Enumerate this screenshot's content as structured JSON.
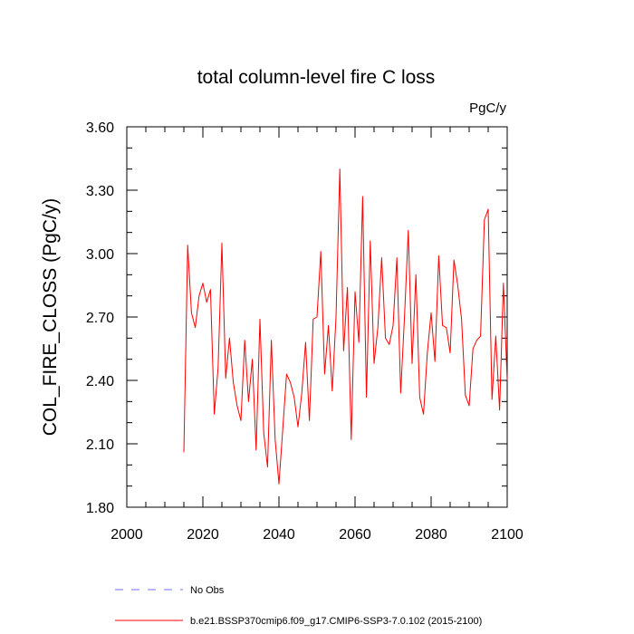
{
  "chart_data": {
    "type": "line",
    "title": "total column-level fire C loss",
    "units": "PgC/y",
    "ylabel": "COL_FIRE_CLOSS  (PgC/y)",
    "xlim": [
      2000,
      2100
    ],
    "ylim": [
      1.8,
      3.6
    ],
    "x_ticks": [
      "2000",
      "2020",
      "2040",
      "2060",
      "2080",
      "2100"
    ],
    "y_ticks": [
      "1.80",
      "2.10",
      "2.40",
      "2.70",
      "3.00",
      "3.30",
      "3.60"
    ],
    "grid": false,
    "legend": {
      "placement": "bottom",
      "entries": [
        {
          "label": "No Obs",
          "color": "#6f6fff",
          "style": "dashed"
        },
        {
          "label": "b.e21.BSSP370cmip6.f09_g17.CMIP6-SSP3-7.0.102 (2015-2100)",
          "color": "#ff0000",
          "style": "solid"
        }
      ]
    },
    "series": [
      {
        "name": "b.e21.BSSP370cmip6.f09_g17.CMIP6-SSP3-7.0.102 (2015-2100)",
        "color": "#ff0000",
        "x": [
          2015,
          2016,
          2017,
          2018,
          2019,
          2020,
          2021,
          2022,
          2023,
          2024,
          2025,
          2026,
          2027,
          2028,
          2029,
          2030,
          2031,
          2032,
          2033,
          2034,
          2035,
          2036,
          2037,
          2038,
          2039,
          2040,
          2041,
          2042,
          2043,
          2044,
          2045,
          2046,
          2047,
          2048,
          2049,
          2050,
          2051,
          2052,
          2053,
          2054,
          2055,
          2056,
          2057,
          2058,
          2059,
          2060,
          2061,
          2062,
          2063,
          2064,
          2065,
          2066,
          2067,
          2068,
          2069,
          2070,
          2071,
          2072,
          2073,
          2074,
          2075,
          2076,
          2077,
          2078,
          2079,
          2080,
          2081,
          2082,
          2083,
          2084,
          2085,
          2086,
          2087,
          2088,
          2089,
          2090,
          2091,
          2092,
          2093,
          2094,
          2095,
          2096,
          2097,
          2098,
          2099,
          2100
        ],
        "values": [
          2.06,
          3.04,
          2.72,
          2.65,
          2.8,
          2.86,
          2.77,
          2.83,
          2.24,
          2.46,
          3.05,
          2.41,
          2.6,
          2.39,
          2.28,
          2.21,
          2.59,
          2.3,
          2.5,
          2.07,
          2.69,
          2.15,
          1.99,
          2.59,
          2.12,
          1.91,
          2.17,
          2.43,
          2.39,
          2.32,
          2.18,
          2.34,
          2.58,
          2.21,
          2.69,
          2.7,
          3.01,
          2.43,
          2.66,
          2.35,
          2.7,
          3.4,
          2.54,
          2.84,
          2.12,
          2.82,
          2.58,
          3.27,
          2.32,
          3.06,
          2.48,
          2.65,
          2.98,
          2.6,
          2.57,
          2.66,
          2.98,
          2.34,
          2.7,
          3.11,
          2.48,
          2.9,
          2.32,
          2.24,
          2.53,
          2.72,
          2.49,
          2.99,
          2.66,
          2.65,
          2.53,
          2.97,
          2.85,
          2.69,
          2.33,
          2.28,
          2.55,
          2.59,
          2.61,
          3.16,
          3.21,
          2.31,
          2.61,
          2.26,
          2.86,
          2.4
        ]
      }
    ]
  }
}
